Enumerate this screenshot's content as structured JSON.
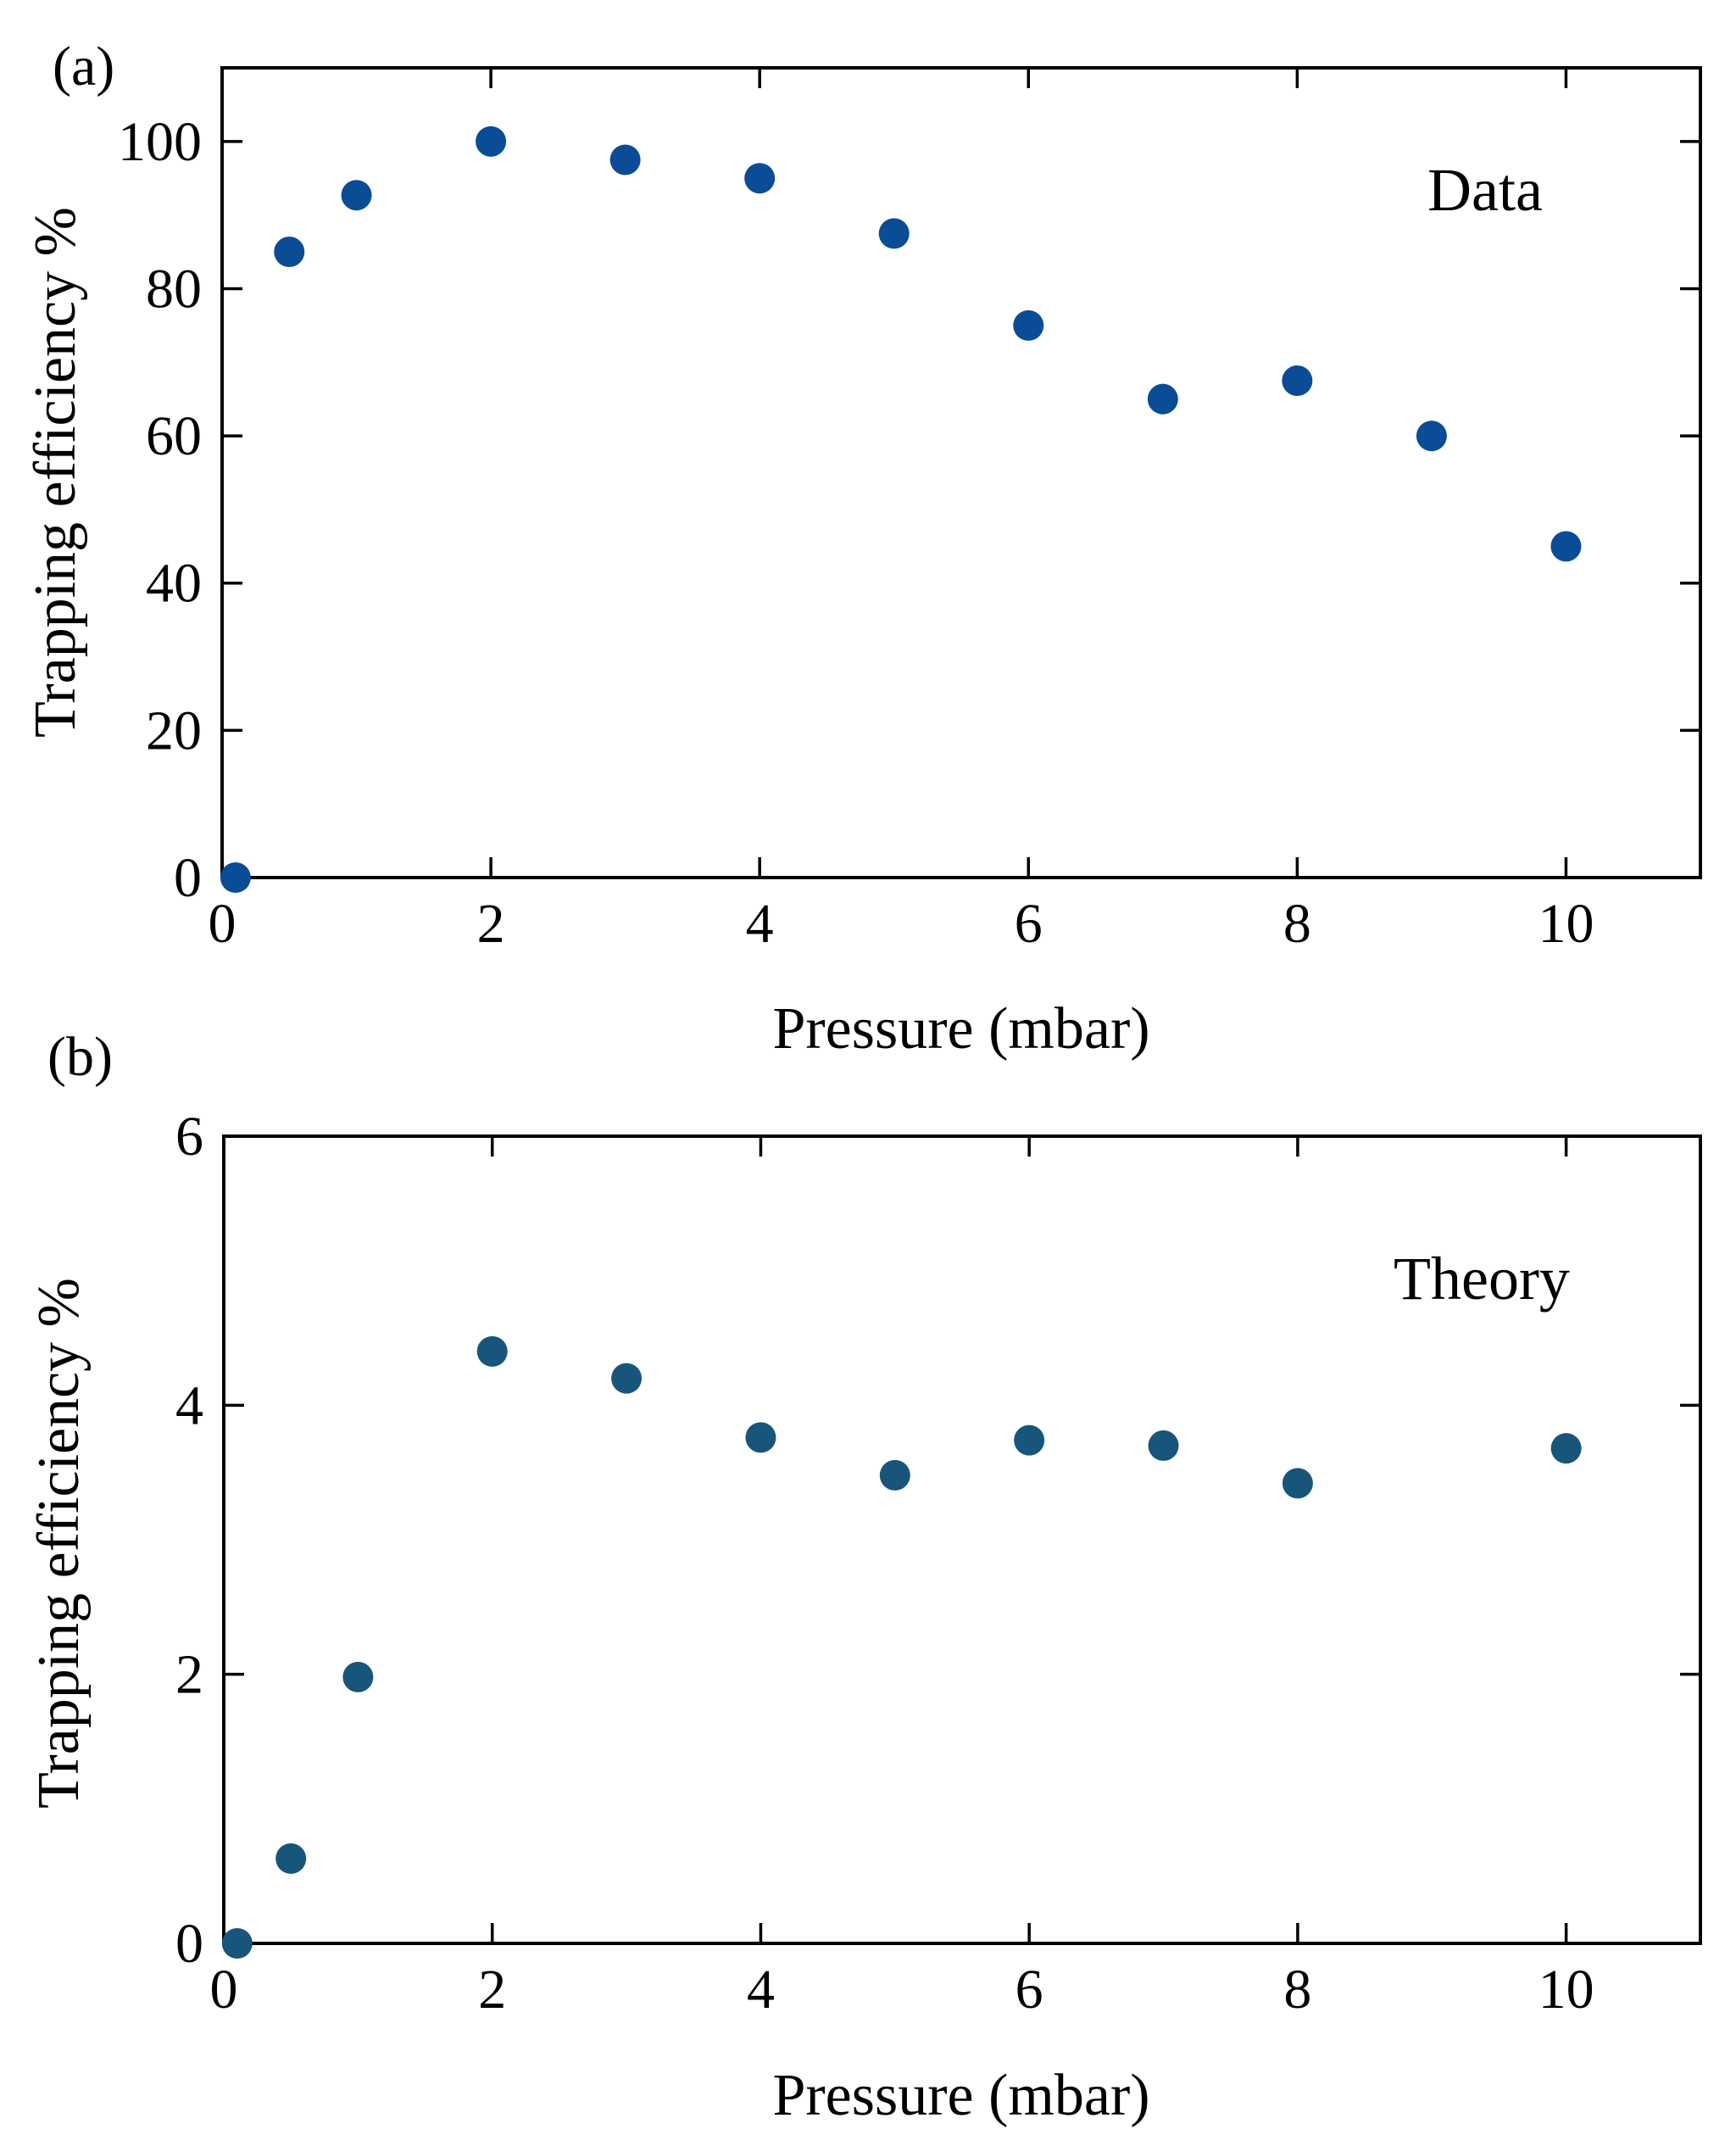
{
  "chart_data": [
    {
      "type": "scatter",
      "panel_label": "(a)",
      "annotation": "Data",
      "xlabel": "Pressure (mbar)",
      "ylabel": "Trapping efficiency %",
      "xlim": [
        0,
        11
      ],
      "ylim": [
        0,
        110
      ],
      "xticks": [
        0,
        2,
        4,
        6,
        8,
        10
      ],
      "yticks": [
        0,
        20,
        40,
        60,
        80,
        100
      ],
      "color": "#0b4c96",
      "grid": false,
      "series": [
        {
          "name": "Data",
          "x": [
            0.1,
            0.5,
            1,
            2,
            3,
            4,
            5,
            6,
            7,
            8,
            9,
            10
          ],
          "y": [
            0,
            85,
            92.7,
            100,
            97.5,
            95,
            87.5,
            75,
            65,
            67.5,
            60,
            45
          ]
        }
      ]
    },
    {
      "type": "scatter",
      "panel_label": "(b)",
      "annotation": "Theory",
      "xlabel": "Pressure (mbar)",
      "ylabel": "Trapping efficiency %",
      "xlim": [
        0,
        11
      ],
      "ylim": [
        0,
        6
      ],
      "xticks": [
        0,
        2,
        4,
        6,
        8,
        10
      ],
      "yticks": [
        0,
        2,
        4,
        6
      ],
      "color": "#17567a",
      "grid": false,
      "series": [
        {
          "name": "Theory",
          "x": [
            0.1,
            0.5,
            1,
            2,
            3,
            4,
            5,
            6,
            7,
            8,
            10
          ],
          "y": [
            0,
            0.63,
            1.98,
            4.4,
            4.2,
            3.76,
            3.48,
            3.74,
            3.7,
            3.42,
            3.68
          ]
        }
      ]
    }
  ]
}
